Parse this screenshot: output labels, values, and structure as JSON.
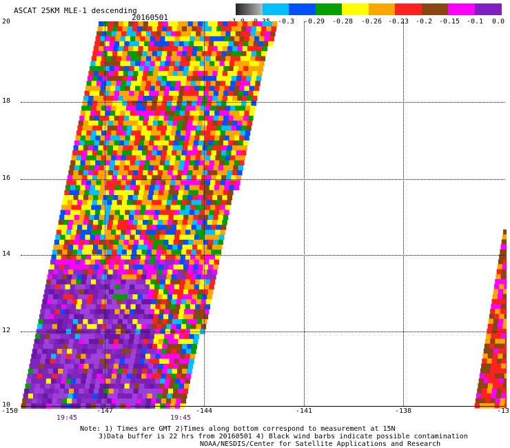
{
  "header": {
    "title": "ASCAT 25KM MLE-1 descending",
    "date": "20160501"
  },
  "colorbar": {
    "labels": [
      "-1.0",
      "-0.35",
      "-0.3",
      "-0.29",
      "-0.28",
      "-0.26",
      "-0.23",
      "-0.2",
      "-0.15",
      "-0.1",
      "0.0"
    ],
    "colors": [
      "#555555",
      "#00bfff",
      "#0050ff",
      "#00a000",
      "#ffff00",
      "#ffa500",
      "#ff2020",
      "#8b4513",
      "#ff00ff",
      "#8020c0"
    ]
  },
  "map": {
    "y_labels": [
      "20",
      "18",
      "16",
      "14",
      "12",
      "10"
    ],
    "x_labels": [
      "-150",
      "-147",
      "-144",
      "-141",
      "-138",
      "-13"
    ],
    "time_labels": [
      "19:45",
      "19:45"
    ]
  },
  "notes": {
    "line1": "Note: 1) Times are GMT 2)Times along bottom correspond to measurement at 15N",
    "line2": "3)Data buffer is 22 hrs from 20160501 4) Black wind barbs indicate possible contamination",
    "line3": "NOAA/NESDIS/Center for Satellite Applications and Research"
  }
}
